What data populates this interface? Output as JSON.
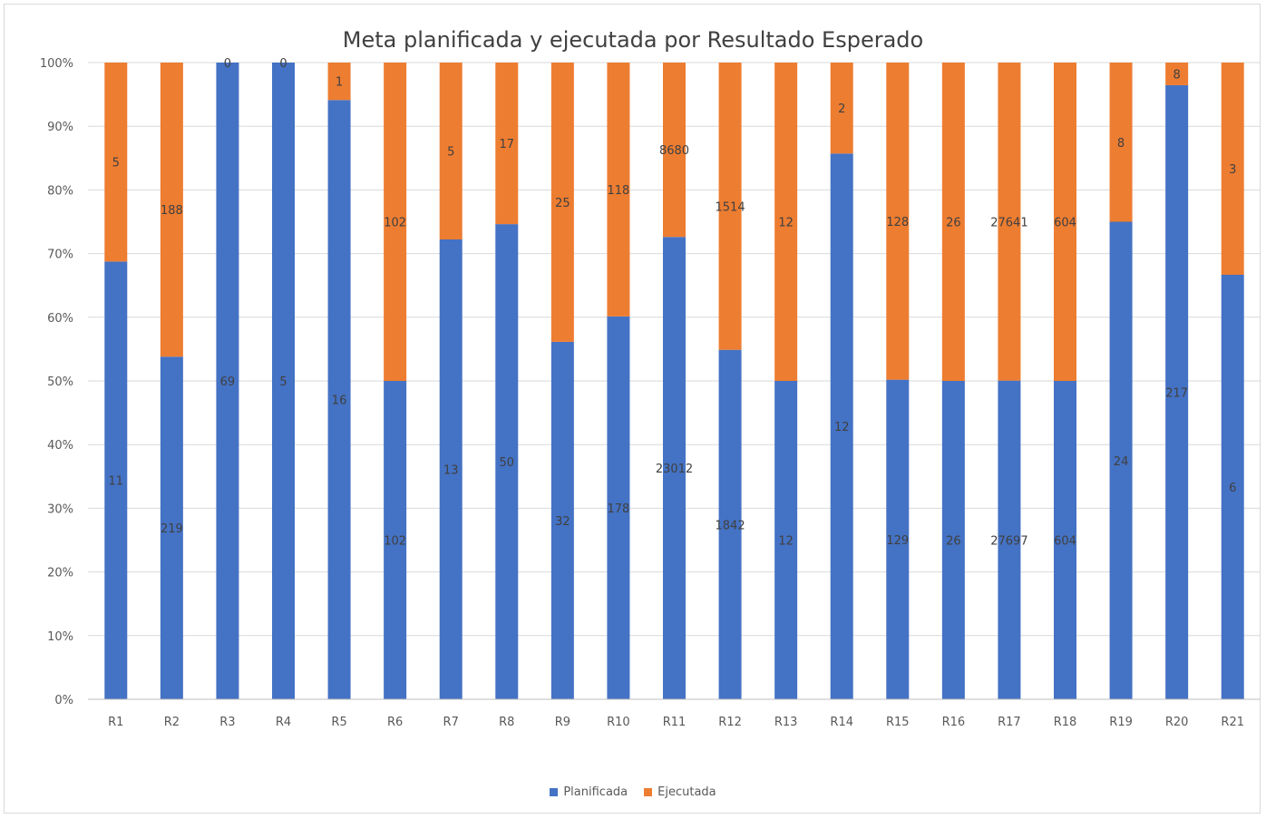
{
  "chart_data": {
    "type": "bar",
    "stacking": "percent",
    "title": "Meta planificada y ejecutada por Resultado Esperado",
    "categories": [
      "R1",
      "R2",
      "R3",
      "R4",
      "R5",
      "R6",
      "R7",
      "R8",
      "R9",
      "R10",
      "R11",
      "R12",
      "R13",
      "R14",
      "R15",
      "R16",
      "R17",
      "R18",
      "R19",
      "R20",
      "R21"
    ],
    "series": [
      {
        "name": "Planificada",
        "color": "#4472C4",
        "values": [
          11,
          219,
          69,
          5,
          16,
          102,
          13,
          50,
          32,
          178,
          23012,
          1842,
          12,
          12,
          129,
          26,
          27697,
          604,
          24,
          217,
          6
        ]
      },
      {
        "name": "Ejecutada",
        "color": "#ED7D31",
        "values": [
          5,
          188,
          0,
          0,
          1,
          102,
          5,
          17,
          25,
          118,
          8680,
          1514,
          12,
          2,
          128,
          26,
          27641,
          604,
          8,
          8,
          3
        ]
      }
    ],
    "y_ticks": [
      "0%",
      "10%",
      "20%",
      "30%",
      "40%",
      "50%",
      "60%",
      "70%",
      "80%",
      "90%",
      "100%"
    ],
    "ylim": [
      0,
      100
    ],
    "grid": true,
    "legend_position": "bottom"
  }
}
